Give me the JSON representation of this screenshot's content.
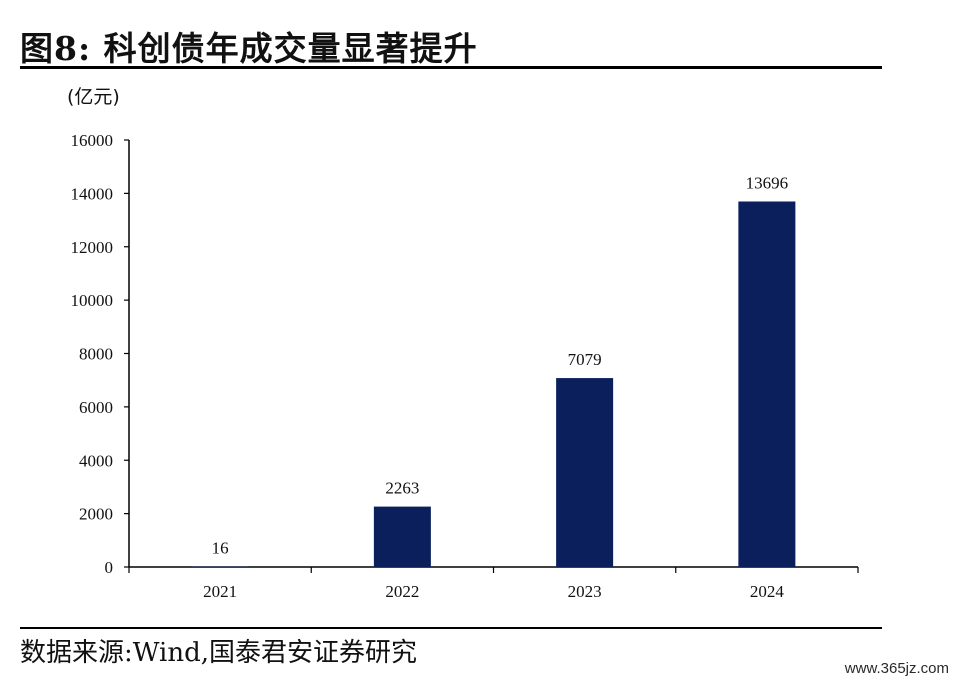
{
  "figure": {
    "title": "图8:  科创债年成交量显著提升",
    "source": "数据来源:Wind,国泰君安证券研究",
    "watermark": "www.365jz.com"
  },
  "chart_data": {
    "type": "bar",
    "unit_label": "(亿元)",
    "categories": [
      "2021",
      "2022",
      "2023",
      "2024"
    ],
    "values": [
      16,
      2263,
      7079,
      13696
    ],
    "data_labels": [
      "16",
      "2263",
      "7079",
      "13696"
    ],
    "ylim": [
      0,
      16000
    ],
    "yticks": [
      "0",
      "2000",
      "4000",
      "6000",
      "8000",
      "10000",
      "12000",
      "14000",
      "16000"
    ],
    "bar_color": "#0b1f5c",
    "grid": false,
    "legend": "none"
  }
}
